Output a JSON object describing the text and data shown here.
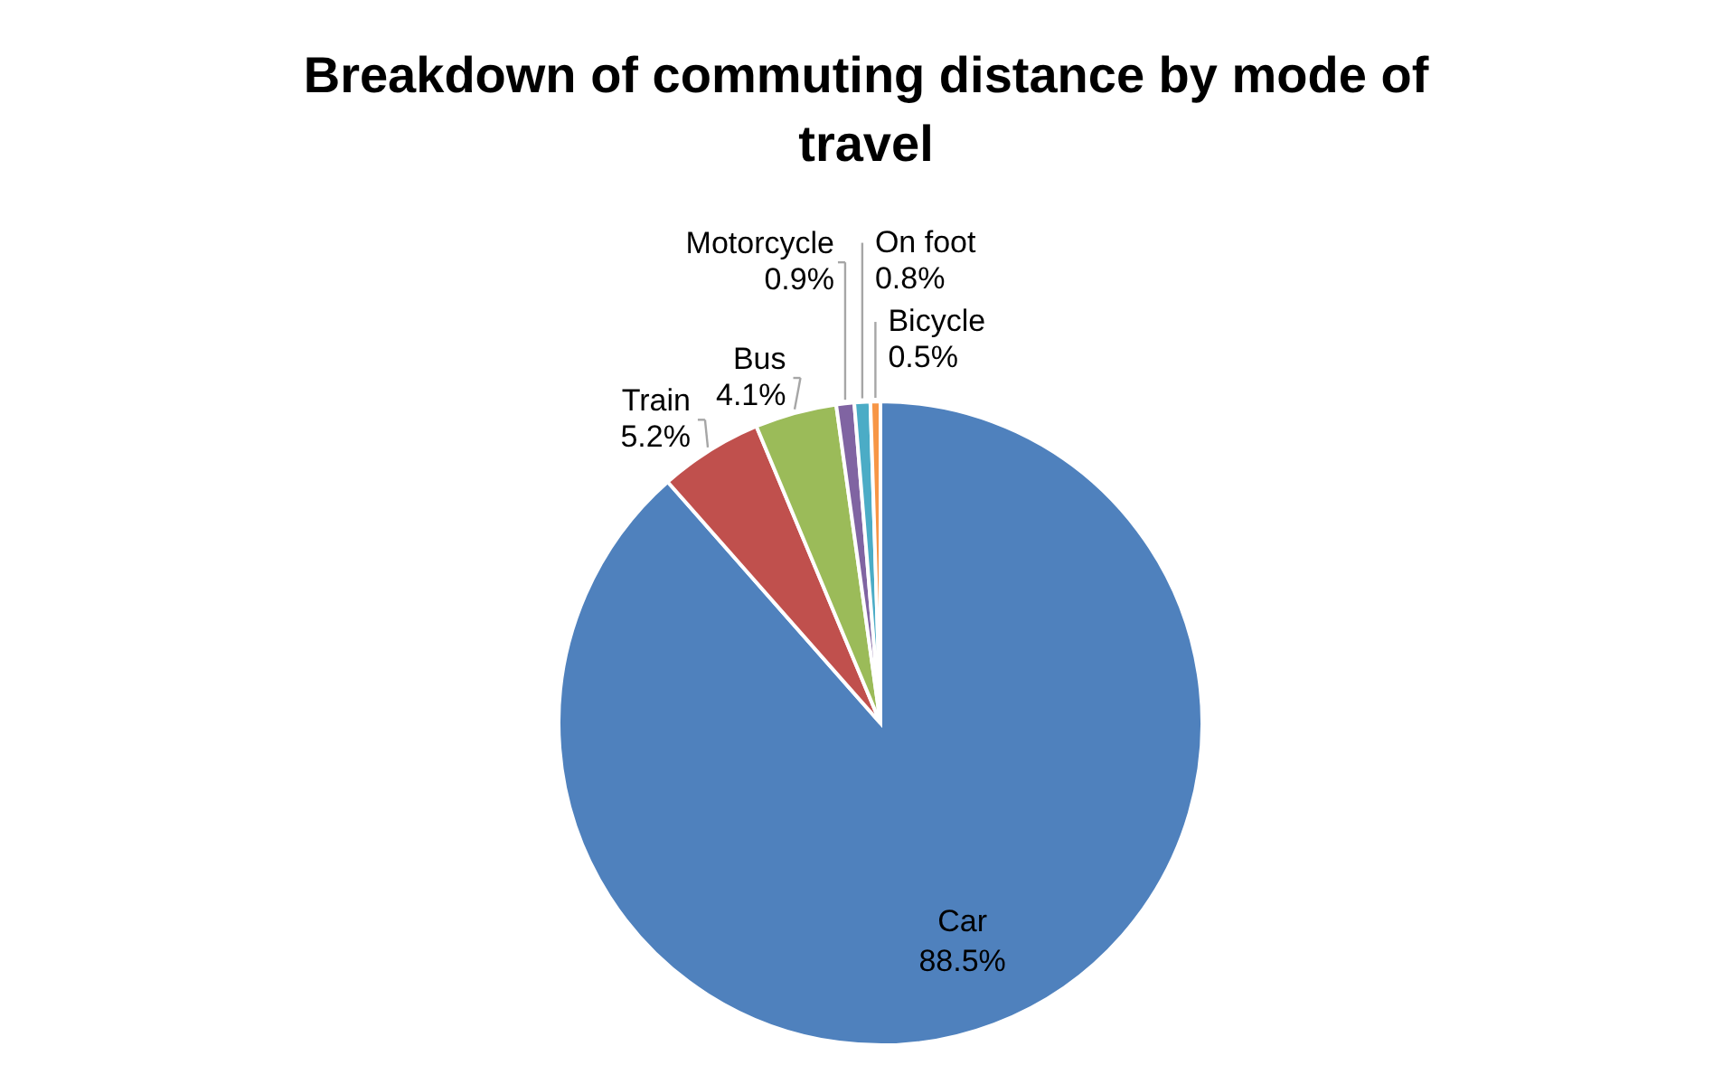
{
  "chart_data": {
    "type": "pie",
    "title": "Breakdown of commuting distance by mode of travel",
    "categories": [
      "Car",
      "Train",
      "Bus",
      "Motorcycle",
      "On foot",
      "Bicycle"
    ],
    "values": [
      88.5,
      5.2,
      4.1,
      0.9,
      0.8,
      0.5
    ],
    "value_labels": [
      "88.5%",
      "5.2%",
      "4.1%",
      "0.9%",
      "0.8%",
      "0.5%"
    ],
    "colors": [
      "#4f81bd",
      "#c0504d",
      "#9bbb59",
      "#8064a2",
      "#4bacc6",
      "#f79646"
    ],
    "legend": false
  }
}
